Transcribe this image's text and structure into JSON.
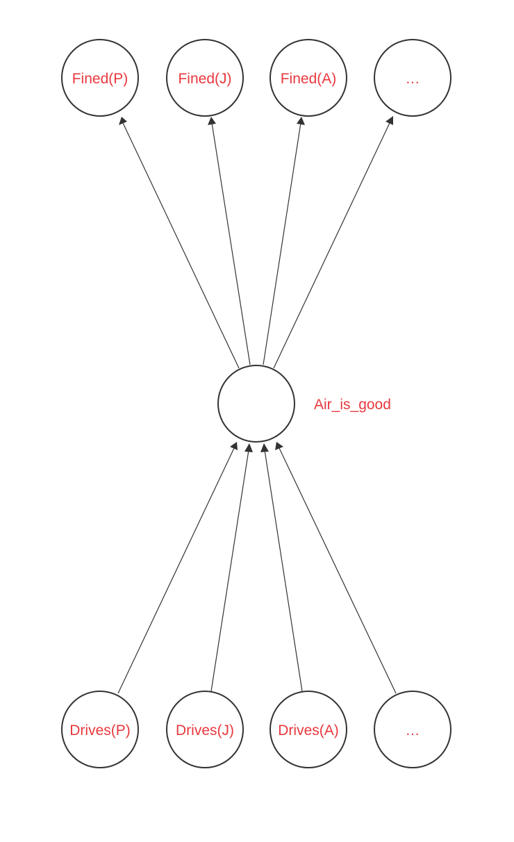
{
  "colors": {
    "label": "#e8383d",
    "stroke": "#333333"
  },
  "nodes": {
    "fined_p": {
      "label": "Fined(P)"
    },
    "fined_j": {
      "label": "Fined(J)"
    },
    "fined_a": {
      "label": "Fined(A)"
    },
    "fined_more": {
      "label": "…"
    },
    "air": {
      "label": "Air_is_good"
    },
    "drives_p": {
      "label": "Drives(P)"
    },
    "drives_j": {
      "label": "Drives(J)"
    },
    "drives_a": {
      "label": "Drives(A)"
    },
    "drives_more": {
      "label": "…"
    }
  },
  "edges": [
    {
      "from": "air",
      "to": "fined_p"
    },
    {
      "from": "air",
      "to": "fined_j"
    },
    {
      "from": "air",
      "to": "fined_a"
    },
    {
      "from": "air",
      "to": "fined_more"
    },
    {
      "from": "drives_p",
      "to": "air"
    },
    {
      "from": "drives_j",
      "to": "air"
    },
    {
      "from": "drives_a",
      "to": "air"
    },
    {
      "from": "drives_more",
      "to": "air"
    }
  ]
}
